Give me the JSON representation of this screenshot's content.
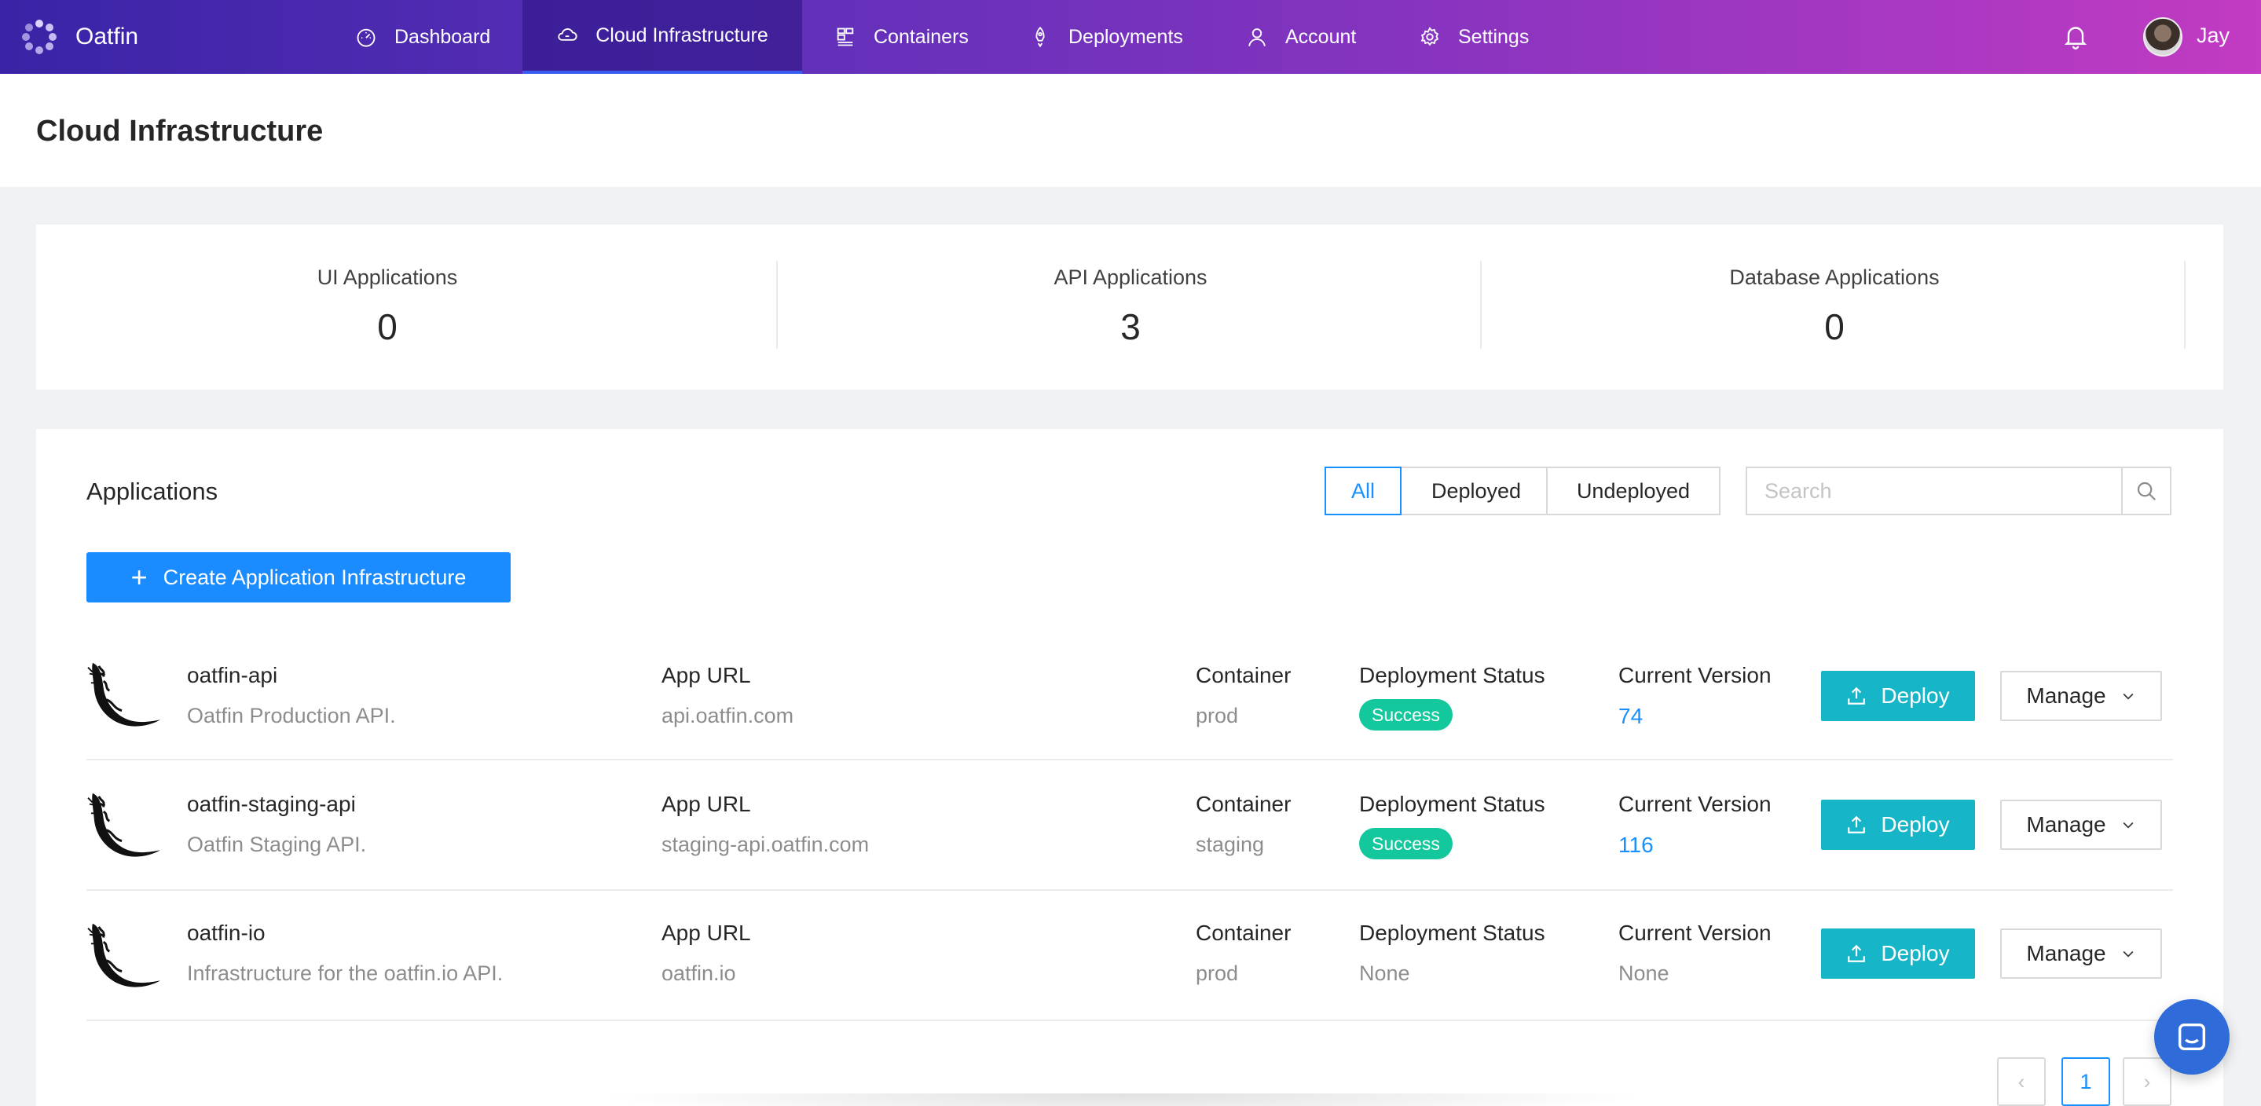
{
  "nav": {
    "brand": "Oatfin",
    "items": [
      {
        "label": "Dashboard",
        "icon": "dashboard-icon"
      },
      {
        "label": "Cloud Infrastructure",
        "icon": "cloud-icon"
      },
      {
        "label": "Containers",
        "icon": "containers-icon"
      },
      {
        "label": "Deployments",
        "icon": "rocket-icon"
      },
      {
        "label": "Account",
        "icon": "user-icon"
      },
      {
        "label": "Settings",
        "icon": "gear-icon"
      }
    ],
    "active": "Cloud Infrastructure",
    "user_name": "Jay"
  },
  "page": {
    "title": "Cloud Infrastructure"
  },
  "stats": [
    {
      "label": "UI Applications",
      "value": "0"
    },
    {
      "label": "API Applications",
      "value": "3"
    },
    {
      "label": "Database Applications",
      "value": "0"
    }
  ],
  "applications": {
    "title": "Applications",
    "filters": [
      "All",
      "Deployed",
      "Undeployed"
    ],
    "active_filter": "All",
    "search_placeholder": "Search",
    "create_label": "Create Application Infrastructure",
    "col_app_url": "App URL",
    "col_container": "Container",
    "col_status": "Deployment Status",
    "col_version": "Current Version",
    "deploy_label": "Deploy",
    "manage_label": "Manage",
    "rows": [
      {
        "name": "oatfin-api",
        "description": "Oatfin Production API.",
        "app_url": "api.oatfin.com",
        "container": "prod",
        "status": "Success",
        "version": "74"
      },
      {
        "name": "oatfin-staging-api",
        "description": "Oatfin Staging API.",
        "app_url": "staging-api.oatfin.com",
        "container": "staging",
        "status": "Success",
        "version": "116"
      },
      {
        "name": "oatfin-io",
        "description": "Infrastructure for the oatfin.io API.",
        "app_url": "oatfin.io",
        "container": "prod",
        "status": "None",
        "version": "None"
      }
    ]
  },
  "pagination": {
    "current": "1",
    "prev": "‹",
    "next": "›"
  },
  "colors": {
    "nav_start": "#3a23a6",
    "nav_end": "#c23bc2",
    "primary": "#1a8cff",
    "deploy": "#17b5c8",
    "success": "#13c89c"
  }
}
